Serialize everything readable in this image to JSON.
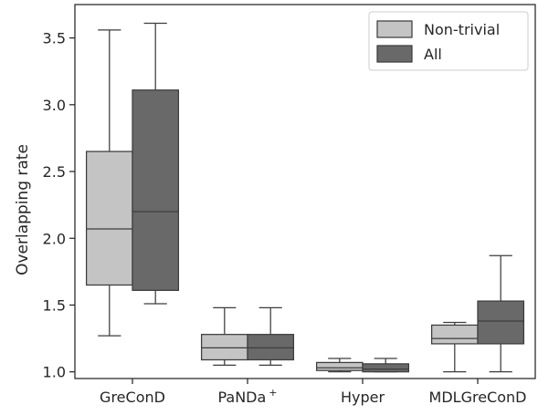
{
  "chart_data": {
    "type": "boxplot",
    "title": "",
    "xlabel": "",
    "ylabel": "Overlapping rate",
    "ylim": [
      0.95,
      3.75
    ],
    "yticks": [
      1.0,
      1.5,
      2.0,
      2.5,
      3.0,
      3.5
    ],
    "ytick_labels": [
      "1.0",
      "1.5",
      "2.0",
      "2.5",
      "3.0",
      "3.5"
    ],
    "categories": [
      "GreConD",
      "PaNDa",
      "Hyper",
      "MDLGreConD"
    ],
    "category_superscripts": [
      "",
      "+",
      "",
      ""
    ],
    "legend": {
      "position": "top-right"
    },
    "series": [
      {
        "name": "Non-trivial",
        "color": "#c4c4c4",
        "boxes": [
          {
            "whisker_low": 1.27,
            "q1": 1.65,
            "median": 2.07,
            "q3": 2.65,
            "whisker_high": 3.56
          },
          {
            "whisker_low": 1.05,
            "q1": 1.09,
            "median": 1.18,
            "q3": 1.28,
            "whisker_high": 1.48
          },
          {
            "whisker_low": 1.0,
            "q1": 1.01,
            "median": 1.03,
            "q3": 1.07,
            "whisker_high": 1.1
          },
          {
            "whisker_low": 1.0,
            "q1": 1.21,
            "median": 1.25,
            "q3": 1.35,
            "whisker_high": 1.37
          }
        ]
      },
      {
        "name": "All",
        "color": "#696969",
        "boxes": [
          {
            "whisker_low": 1.51,
            "q1": 1.61,
            "median": 2.2,
            "q3": 3.11,
            "whisker_high": 3.61
          },
          {
            "whisker_low": 1.05,
            "q1": 1.09,
            "median": 1.18,
            "q3": 1.28,
            "whisker_high": 1.48
          },
          {
            "whisker_low": 1.0,
            "q1": 1.0,
            "median": 1.02,
            "q3": 1.06,
            "whisker_high": 1.1
          },
          {
            "whisker_low": 1.0,
            "q1": 1.21,
            "median": 1.38,
            "q3": 1.53,
            "whisker_high": 1.87
          }
        ]
      }
    ]
  }
}
